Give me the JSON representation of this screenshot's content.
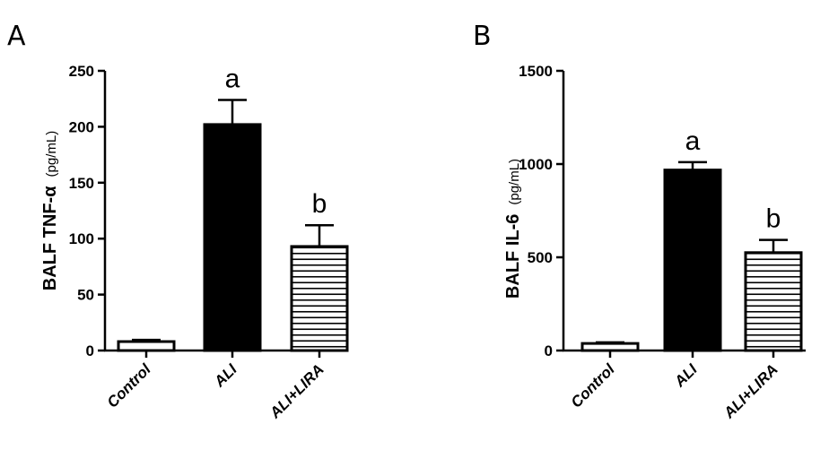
{
  "chart_data": [
    {
      "type": "bar",
      "panel": "A",
      "categories": [
        "Control",
        "ALI",
        "ALI+LIRA"
      ],
      "values": [
        8,
        202,
        93
      ],
      "errors": [
        1.5,
        22,
        19
      ],
      "significance": [
        "",
        "a",
        "b"
      ],
      "bar_styles": [
        "open",
        "solid",
        "hatched"
      ],
      "ylabel": "BALF TNF-α",
      "ylabel_unit": "(pg/mL)",
      "ylim": [
        0,
        250
      ],
      "yticks": [
        0,
        50,
        100,
        150,
        200,
        250
      ],
      "grid": false
    },
    {
      "type": "bar",
      "panel": "B",
      "categories": [
        "Control",
        "ALI",
        "ALI+LIRA"
      ],
      "values": [
        38,
        968,
        525
      ],
      "errors": [
        6,
        42,
        68
      ],
      "significance": [
        "",
        "a",
        "b"
      ],
      "bar_styles": [
        "open",
        "solid",
        "hatched"
      ],
      "ylabel": "BALF IL-6",
      "ylabel_unit": "(pg/mL)",
      "ylim": [
        0,
        1500
      ],
      "yticks": [
        0,
        500,
        1000,
        1500
      ],
      "grid": false
    }
  ],
  "colors": {
    "bar_fill_solid": "#000000",
    "bar_stroke": "#000000",
    "background": "#ffffff"
  }
}
